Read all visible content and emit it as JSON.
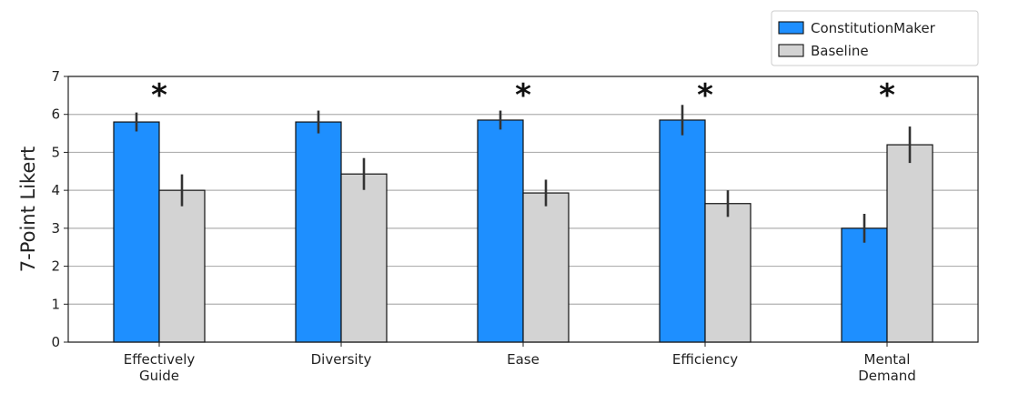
{
  "chart_data": {
    "type": "bar",
    "title": "",
    "xlabel": "",
    "ylabel": "7-Point Likert",
    "ylim": [
      0,
      7
    ],
    "yticks": [
      0,
      1,
      2,
      3,
      4,
      5,
      6,
      7
    ],
    "grid": "horizontal",
    "legend_position": "top-right",
    "categories": [
      [
        "Effectively",
        "Guide"
      ],
      [
        "Diversity"
      ],
      [
        "Ease"
      ],
      [
        "Efficiency"
      ],
      [
        "Mental",
        "Demand"
      ]
    ],
    "series": [
      {
        "name": "ConstitutionMaker",
        "color": "#1E8FFF",
        "values": [
          5.8,
          5.8,
          5.85,
          5.85,
          3.0
        ],
        "error": [
          0.25,
          0.3,
          0.25,
          0.4,
          0.38
        ]
      },
      {
        "name": "Baseline",
        "color": "#D3D3D3",
        "values": [
          4.0,
          4.43,
          3.93,
          3.65,
          5.2
        ],
        "error": [
          0.42,
          0.42,
          0.35,
          0.35,
          0.48
        ]
      }
    ],
    "significance": [
      "*",
      "",
      "*",
      "*",
      "*"
    ]
  }
}
